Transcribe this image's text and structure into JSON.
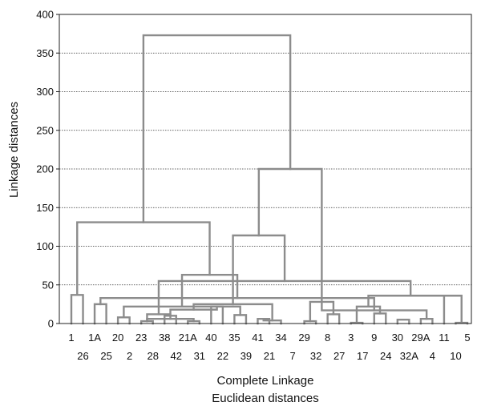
{
  "chart_data": {
    "type": "dendrogram",
    "ylabel": "Linkage distances",
    "xlabel_lines": [
      "Complete Linkage",
      "Euclidean distances"
    ],
    "ylim": [
      0,
      400
    ],
    "yticks": [
      0,
      50,
      100,
      150,
      200,
      250,
      300,
      350,
      400
    ],
    "grid": "horizontal dotted",
    "link_color": "#8c8c8c",
    "leaves_top_row": [
      "1",
      "1A",
      "20",
      "23",
      "38",
      "21A",
      "40",
      "35",
      "41",
      "34",
      "29",
      "8",
      "3",
      "9",
      "30",
      "29A",
      "11",
      "5"
    ],
    "leaves_bottom_row": [
      "26",
      "25",
      "2",
      "28",
      "42",
      "31",
      "22",
      "39",
      "21",
      "7",
      "32",
      "27",
      "17",
      "24",
      "32A",
      "4",
      "10"
    ],
    "leaf_order": [
      "1",
      "26",
      "1A",
      "25",
      "20",
      "2",
      "23",
      "28",
      "38",
      "42",
      "21A",
      "31",
      "40",
      "22",
      "35",
      "39",
      "41",
      "21",
      "34",
      "7",
      "29",
      "32",
      "8",
      "27",
      "3",
      "17",
      "9",
      "24",
      "30",
      "32A",
      "29A",
      "4",
      "11",
      "10",
      "5"
    ],
    "merges": [
      {
        "left": "23",
        "right": "28",
        "height": 3
      },
      {
        "left": "21A",
        "right": "31",
        "height": 3
      },
      {
        "left": "35",
        "right": "39",
        "height": 11
      },
      {
        "left": "41",
        "right": "21",
        "height": 6
      },
      {
        "left": "29",
        "right": "32",
        "height": 3
      },
      {
        "left": "3",
        "right": "17",
        "height": 1
      },
      {
        "left": "30",
        "right": "32A",
        "height": 5
      },
      {
        "left": "29A",
        "right": "4",
        "height": 6
      },
      {
        "left": "10",
        "right": "5",
        "height": 1
      },
      {
        "left": "1",
        "right": "26",
        "height": 37
      },
      {
        "left": "1A",
        "right": "25",
        "height": 25
      },
      {
        "left": "20",
        "right": "2",
        "height": 8
      },
      {
        "left": "38",
        "right": "42",
        "height": 10
      },
      {
        "left": "40",
        "right": "22",
        "height": 22
      },
      {
        "left": "8",
        "right": "27",
        "height": 12
      },
      {
        "left": "9",
        "right": "24",
        "height": 13
      },
      {
        "left": "c1",
        "right": "c2",
        "height": 6
      },
      {
        "left": "c13",
        "right": "c1",
        "height": 12
      },
      {
        "left": "c4",
        "right": "34",
        "height": 4
      },
      {
        "left": "c5",
        "right": "c15",
        "height": 28
      },
      {
        "left": "c6",
        "right": "c16",
        "height": 22
      },
      {
        "left": "11",
        "right": "c9",
        "height": 36
      },
      {
        "left": "c8",
        "right": "c20",
        "height": 17
      },
      {
        "left": "c14",
        "right": "c17",
        "height": 18
      },
      {
        "left": "c12",
        "right": "c3",
        "height": 22
      },
      {
        "left": "c21",
        "right": "c22",
        "height": 36
      },
      {
        "left": "c11",
        "right": "c23",
        "height": 33
      },
      {
        "left": "c24",
        "right": "c19",
        "height": 25
      },
      {
        "left": "c18",
        "right": "c26",
        "height": 55
      },
      {
        "left": "c25",
        "right": "c27",
        "height": 63
      },
      {
        "left": "c28",
        "right": "c29",
        "height": 114
      },
      {
        "left": "c10",
        "right": "c30",
        "height": 131
      },
      {
        "left": "c20",
        "right": "c31",
        "height": 200
      },
      {
        "left": "c32",
        "right": "c33",
        "height": 373
      }
    ]
  }
}
